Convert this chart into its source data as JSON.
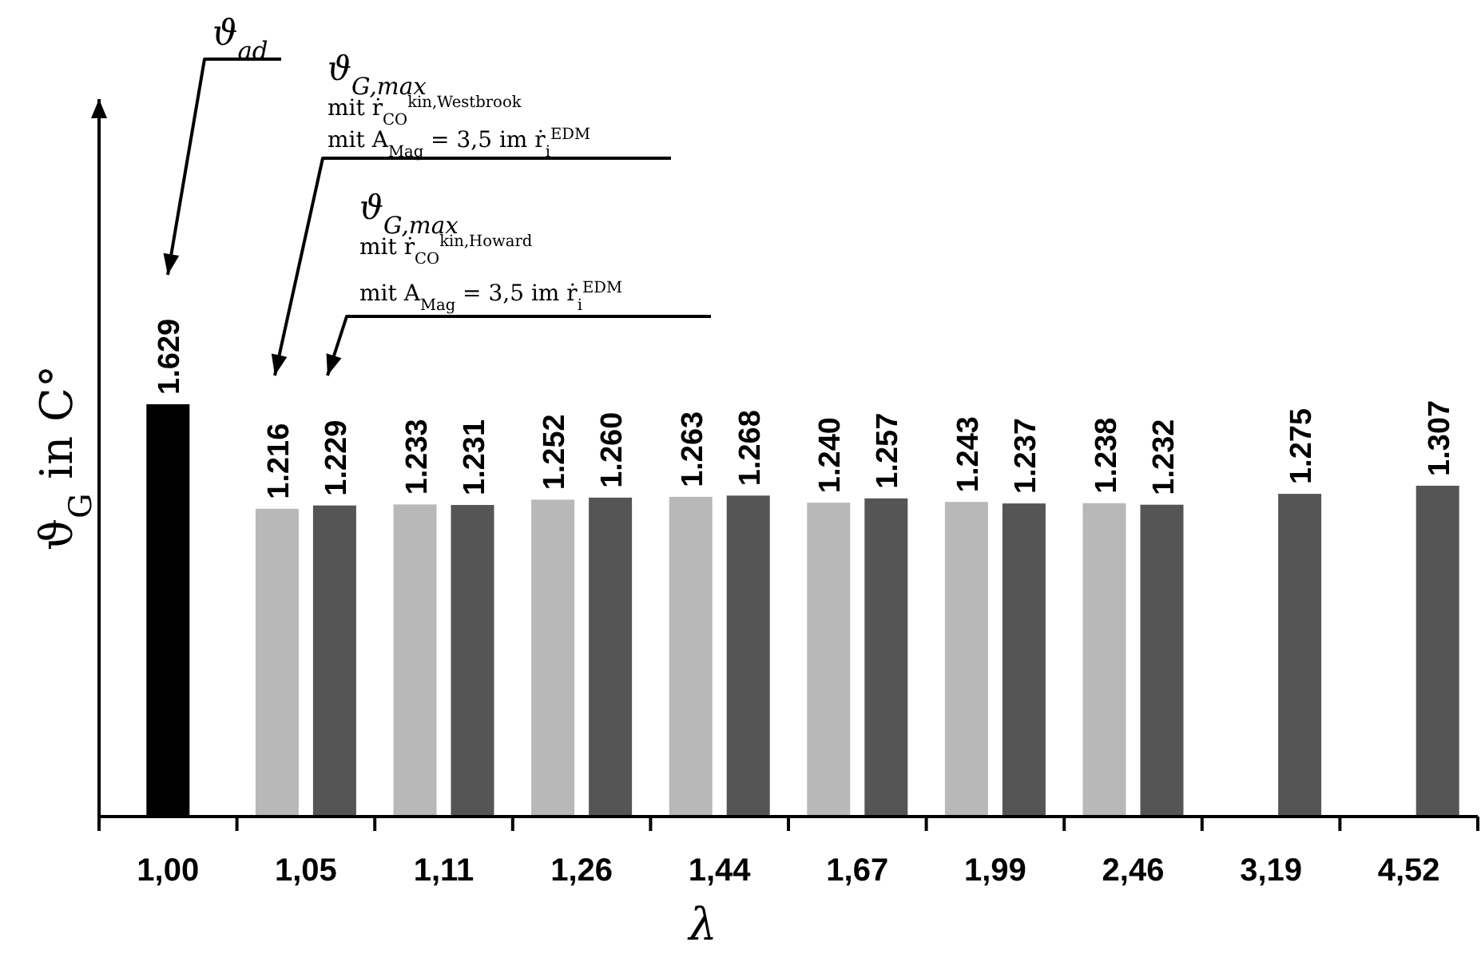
{
  "chart_data": {
    "type": "bar",
    "categories": [
      "1,00",
      "1,05",
      "1,11",
      "1,26",
      "1,44",
      "1,67",
      "1,99",
      "2,46",
      "3,19",
      "4,52"
    ],
    "xlabel": "λ",
    "ylabel": "ϑ$_{G}$ in C°",
    "tick_labels": "x",
    "series": [
      {
        "color": "#000000",
        "values": [
          1629,
          null,
          null,
          null,
          null,
          null,
          null,
          null,
          null,
          null
        ],
        "value_labels": [
          "1.629",
          null,
          null,
          null,
          null,
          null,
          null,
          null,
          null,
          null
        ]
      },
      {
        "color": "#b8b8b8",
        "values": [
          null,
          1216,
          1233,
          1252,
          1263,
          1240,
          1243,
          1238,
          null,
          null
        ],
        "value_labels": [
          null,
          "1.216",
          "1.233",
          "1.252",
          "1.263",
          "1.240",
          "1.243",
          "1.238",
          null,
          null
        ]
      },
      {
        "color": "#555555",
        "values": [
          null,
          1229,
          1231,
          1260,
          1268,
          1257,
          1237,
          1232,
          1275,
          1307
        ],
        "value_labels": [
          null,
          "1.229",
          "1.231",
          "1.260",
          "1.268",
          "1.257",
          "1.237",
          "1.232",
          "1.275",
          "1.307"
        ]
      }
    ],
    "annotations": [
      "ϑ$_{ad}$",
      "ϑ$_{G,max}$",
      "mit ṙ$_{CO}$$^{kin,Westbrook}$",
      "mit A$_{Mag}$ = 3,5 im ṙ$_{i}$$^{EDM}$",
      "ϑ$_{G,max}$",
      "mit ṙ$_{CO}$$^{kin,Howard}$",
      "mit A$_{Mag}$ = 3,5 im ṙ$_{i}$$^{EDM}$"
    ]
  }
}
